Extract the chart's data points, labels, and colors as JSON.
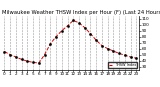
{
  "title": "Milwaukee Weather THSW Index per Hour (F) (Last 24 Hours)",
  "hours": [
    0,
    1,
    2,
    3,
    4,
    5,
    6,
    7,
    8,
    9,
    10,
    11,
    12,
    13,
    14,
    15,
    16,
    17,
    18,
    19,
    20,
    21,
    22,
    23
  ],
  "values": [
    55,
    50,
    46,
    42,
    39,
    37,
    36,
    50,
    68,
    80,
    90,
    98,
    107,
    103,
    95,
    85,
    74,
    65,
    60,
    56,
    52,
    49,
    46,
    44
  ],
  "line_color": "#dd0000",
  "marker_color": "#000000",
  "bg_color": "#ffffff",
  "grid_color": "#999999",
  "ylim": [
    25,
    115
  ],
  "xlim": [
    -0.5,
    23.5
  ],
  "ytick_values": [
    30,
    40,
    50,
    60,
    70,
    80,
    90,
    100,
    110
  ],
  "ytick_labels": [
    "30",
    "40",
    "50",
    "60",
    "70",
    "80",
    "90",
    "100",
    "110"
  ],
  "xticks": [
    0,
    1,
    2,
    3,
    4,
    5,
    6,
    7,
    8,
    9,
    10,
    11,
    12,
    13,
    14,
    15,
    16,
    17,
    18,
    19,
    20,
    21,
    22,
    23
  ],
  "xtick_labels": [
    "0",
    "1",
    "2",
    "3",
    "4",
    "5",
    "6",
    "7",
    "8",
    "9",
    "10",
    "11",
    "12",
    "13",
    "14",
    "15",
    "16",
    "17",
    "18",
    "19",
    "20",
    "21",
    "22",
    "23"
  ],
  "xlabel_fontsize": 3.0,
  "ylabel_fontsize": 3.0,
  "title_fontsize": 3.8,
  "legend_label": "THSW Index",
  "legend_color": "#dd0000",
  "linewidth": 0.7,
  "markersize": 1.5
}
